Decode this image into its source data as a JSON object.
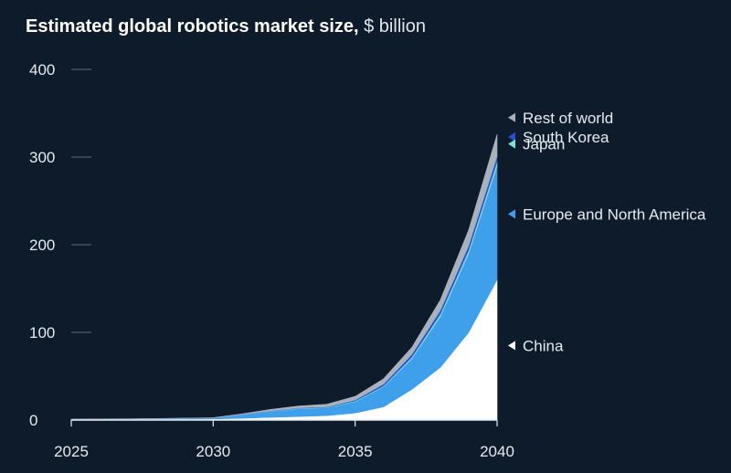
{
  "title": {
    "main": "Estimated global robotics market size,",
    "unit": "$ billion"
  },
  "chart_data": {
    "type": "area",
    "title": "Estimated global robotics market size, $ billion",
    "stacked": true,
    "x": [
      2025,
      2026,
      2027,
      2028,
      2029,
      2030,
      2031,
      2032,
      2033,
      2034,
      2035,
      2036,
      2037,
      2038,
      2039,
      2040
    ],
    "xticks": [
      2025,
      2030,
      2035,
      2040
    ],
    "yticks": [
      0,
      100,
      200,
      300,
      400
    ],
    "ylim": [
      0,
      400
    ],
    "grid": "y-stubs",
    "series": [
      {
        "name": "China",
        "color": "#ffffff",
        "values": [
          0.5,
          0.6,
          0.7,
          0.8,
          1.0,
          1.2,
          2,
          3,
          4,
          5,
          8,
          15,
          35,
          60,
          100,
          160
        ]
      },
      {
        "name": "Europe and North America",
        "color": "#3ea0ea",
        "values": [
          0.3,
          0.4,
          0.5,
          0.7,
          0.8,
          1.0,
          4,
          7,
          9,
          9,
          13,
          23,
          35,
          58,
          90,
          130
        ]
      },
      {
        "name": "Japan",
        "color": "#7de0da",
        "values": [
          0.05,
          0.05,
          0.05,
          0.05,
          0.1,
          0.1,
          0.2,
          0.3,
          0.4,
          0.5,
          0.8,
          1,
          2,
          3,
          4,
          5
        ]
      },
      {
        "name": "South Korea",
        "color": "#2a4fd1",
        "values": [
          0.05,
          0.05,
          0.05,
          0.05,
          0.1,
          0.1,
          0.2,
          0.3,
          0.5,
          0.5,
          1,
          2,
          3,
          4,
          5,
          6
        ]
      },
      {
        "name": "Rest of world",
        "color": "#a9b1bb",
        "values": [
          0.1,
          0.1,
          0.1,
          0.2,
          0.2,
          0.3,
          0.6,
          1.4,
          2.1,
          3,
          4.2,
          6,
          8,
          12,
          18,
          25
        ]
      }
    ],
    "legend": [
      {
        "name": "Rest of world",
        "value": 345,
        "color": "#a9b1bb"
      },
      {
        "name": "South Korea",
        "value": 323,
        "color": "#2a4fd1"
      },
      {
        "name": "Japan",
        "value": 315,
        "color": "#7de0da"
      },
      {
        "name": "Europe and North America",
        "value": 235,
        "color": "#3ea0ea"
      },
      {
        "name": "China",
        "value": 85,
        "color": "#ffffff"
      }
    ]
  }
}
